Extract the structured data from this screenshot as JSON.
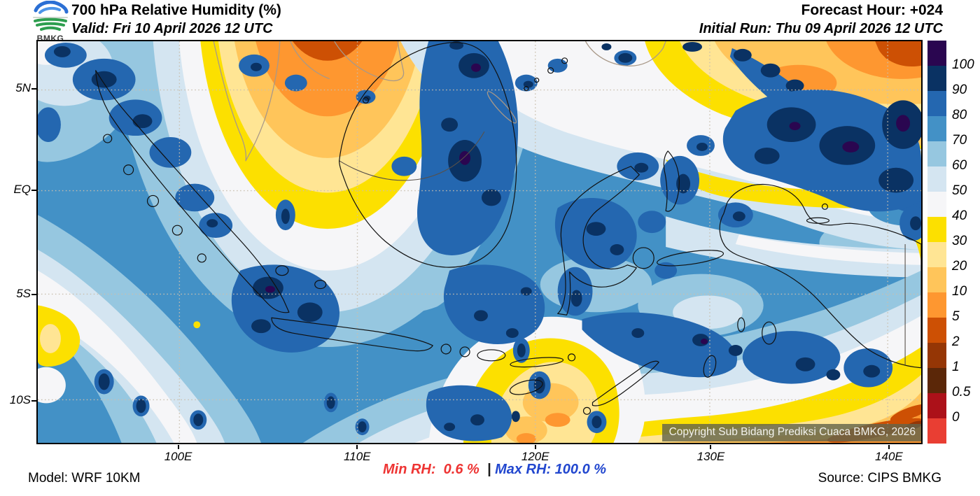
{
  "header": {
    "logo_text": "BMKG",
    "title": "700 hPa Relative Humidity (%)",
    "valid": "Valid: Fri 10 April 2026 12 UTC",
    "forecast_hour": "Forecast Hour: +024",
    "initial_run": "Initial Run: Thu 09 April 2026 12 UTC"
  },
  "map": {
    "copyright": "Copyright Sub Bidang Prediksi Cuaca BMKG, 2026"
  },
  "footer": {
    "model": "Model: WRF 10KM",
    "min_rh_label": "Min RH:",
    "min_rh_value": "0.6 %",
    "separator": "|",
    "max_rh_label": "Max RH:",
    "max_rh_value": "100.0 %",
    "source": "Source: CIPS BMKG"
  },
  "chart_data": {
    "type": "heatmap",
    "title": "700 hPa Relative Humidity (%)",
    "units": "%",
    "field_summary": {
      "min": 0.6,
      "max": 100.0
    },
    "x_axis": {
      "ticks": [
        {
          "label": "100E",
          "f": 0.16
        },
        {
          "label": "110E",
          "f": 0.362
        },
        {
          "label": "120E",
          "f": 0.563
        },
        {
          "label": "130E",
          "f": 0.761
        },
        {
          "label": "140E",
          "f": 0.962
        }
      ]
    },
    "y_axis": {
      "ticks": [
        {
          "label": "5N",
          "f": 0.121
        },
        {
          "label": "EQ",
          "f": 0.372
        },
        {
          "label": "5S",
          "f": 0.63
        },
        {
          "label": "10S",
          "f": 0.893
        }
      ]
    },
    "colorbar": {
      "levels": [
        "100",
        "90",
        "80",
        "70",
        "60",
        "50",
        "40",
        "30",
        "20",
        "10",
        "5",
        "2",
        "1",
        "0.5",
        "0"
      ],
      "colors": [
        "#2A0650",
        "#0A3263",
        "#2467B0",
        "#4391C6",
        "#96C7E0",
        "#D4E5F1",
        "#F6F6F8",
        "#FCE000",
        "#FFE594",
        "#FFC55A",
        "#FE9730",
        "#CD5004",
        "#953605",
        "#5B2708",
        "#AC1119",
        "#E93E33"
      ]
    },
    "legend_position": "right",
    "grid": "dotted"
  }
}
